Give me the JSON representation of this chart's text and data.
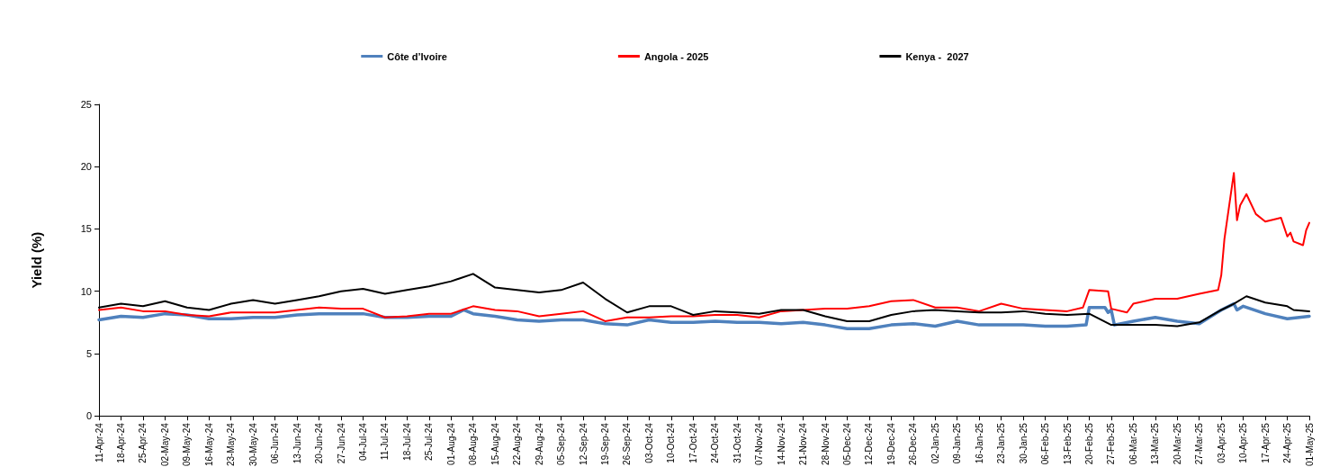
{
  "chart_data": {
    "type": "line",
    "ylabel": "Yield (%)",
    "legend": "top",
    "grid": false,
    "marker": "none",
    "line_style": "solid",
    "xlim": [
      "2024-04-11",
      "2025-05-01"
    ],
    "ylim": [
      0,
      25
    ],
    "yticks": [
      0,
      5,
      10,
      15,
      20,
      25
    ],
    "xticks": [
      {
        "value": "2024-04-11",
        "label": "11-Apr-24"
      },
      {
        "value": "2024-04-18",
        "label": "18-Apr-24"
      },
      {
        "value": "2024-04-25",
        "label": "25-Apr-24"
      },
      {
        "value": "2024-05-02",
        "label": "02-May-24"
      },
      {
        "value": "2024-05-09",
        "label": "09-May-24"
      },
      {
        "value": "2024-05-16",
        "label": "16-May-24"
      },
      {
        "value": "2024-05-23",
        "label": "23-May-24"
      },
      {
        "value": "2024-05-30",
        "label": "30-May-24"
      },
      {
        "value": "2024-06-06",
        "label": "06-Jun-24"
      },
      {
        "value": "2024-06-13",
        "label": "13-Jun-24"
      },
      {
        "value": "2024-06-20",
        "label": "20-Jun-24"
      },
      {
        "value": "2024-06-27",
        "label": "27-Jun-24"
      },
      {
        "value": "2024-07-04",
        "label": "04-Jul-24"
      },
      {
        "value": "2024-07-11",
        "label": "11-Jul-24"
      },
      {
        "value": "2024-07-18",
        "label": "18-Jul-24"
      },
      {
        "value": "2024-07-25",
        "label": "25-Jul-24"
      },
      {
        "value": "2024-08-01",
        "label": "01-Aug-24"
      },
      {
        "value": "2024-08-08",
        "label": "08-Aug-24"
      },
      {
        "value": "2024-08-15",
        "label": "15-Aug-24"
      },
      {
        "value": "2024-08-22",
        "label": "22-Aug-24"
      },
      {
        "value": "2024-08-29",
        "label": "29-Aug-24"
      },
      {
        "value": "2024-09-05",
        "label": "05-Sep-24"
      },
      {
        "value": "2024-09-12",
        "label": "12-Sep-24"
      },
      {
        "value": "2024-09-19",
        "label": "19-Sep-24"
      },
      {
        "value": "2024-09-26",
        "label": "26-Sep-24"
      },
      {
        "value": "2024-10-03",
        "label": "03-Oct-24"
      },
      {
        "value": "2024-10-10",
        "label": "10-Oct-24"
      },
      {
        "value": "2024-10-17",
        "label": "17-Oct-24"
      },
      {
        "value": "2024-10-24",
        "label": "24-Oct-24"
      },
      {
        "value": "2024-10-31",
        "label": "31-Oct-24"
      },
      {
        "value": "2024-11-07",
        "label": "07-Nov-24"
      },
      {
        "value": "2024-11-14",
        "label": "14-Nov-24"
      },
      {
        "value": "2024-11-21",
        "label": "21-Nov-24"
      },
      {
        "value": "2024-11-28",
        "label": "28-Nov-24"
      },
      {
        "value": "2024-12-05",
        "label": "05-Dec-24"
      },
      {
        "value": "2024-12-12",
        "label": "12-Dec-24"
      },
      {
        "value": "2024-12-19",
        "label": "19-Dec-24"
      },
      {
        "value": "2024-12-26",
        "label": "26-Dec-24"
      },
      {
        "value": "2025-01-02",
        "label": "02-Jan-25"
      },
      {
        "value": "2025-01-09",
        "label": "09-Jan-25"
      },
      {
        "value": "2025-01-16",
        "label": "16-Jan-25"
      },
      {
        "value": "2025-01-23",
        "label": "23-Jan-25"
      },
      {
        "value": "2025-01-30",
        "label": "30-Jan-25"
      },
      {
        "value": "2025-02-06",
        "label": "06-Feb-25"
      },
      {
        "value": "2025-02-13",
        "label": "13-Feb-25"
      },
      {
        "value": "2025-02-20",
        "label": "20-Feb-25"
      },
      {
        "value": "2025-02-27",
        "label": "27-Feb-25"
      },
      {
        "value": "2025-03-06",
        "label": "06-Mar-25"
      },
      {
        "value": "2025-03-13",
        "label": "13-Mar-25"
      },
      {
        "value": "2025-03-20",
        "label": "20-Mar-25"
      },
      {
        "value": "2025-03-27",
        "label": "27-Mar-25"
      },
      {
        "value": "2025-04-03",
        "label": "03-Apr-25"
      },
      {
        "value": "2025-04-10",
        "label": "10-Apr-25"
      },
      {
        "value": "2025-04-17",
        "label": "17-Apr-25"
      },
      {
        "value": "2025-04-24",
        "label": "24-Apr-25"
      },
      {
        "value": "2025-05-01",
        "label": "01-May-25"
      }
    ],
    "series": [
      {
        "name": "Côte d’Ivoire",
        "color": "#4f81bd",
        "x": [
          "2024-04-11",
          "2024-04-18",
          "2024-04-25",
          "2024-05-02",
          "2024-05-09",
          "2024-05-16",
          "2024-05-23",
          "2024-05-30",
          "2024-06-06",
          "2024-06-13",
          "2024-06-20",
          "2024-06-27",
          "2024-07-04",
          "2024-07-11",
          "2024-07-18",
          "2024-07-25",
          "2024-08-01",
          "2024-08-05",
          "2024-08-08",
          "2024-08-15",
          "2024-08-22",
          "2024-08-29",
          "2024-09-05",
          "2024-09-12",
          "2024-09-19",
          "2024-09-26",
          "2024-10-03",
          "2024-10-10",
          "2024-10-17",
          "2024-10-24",
          "2024-10-31",
          "2024-11-07",
          "2024-11-14",
          "2024-11-21",
          "2024-11-28",
          "2024-12-05",
          "2024-12-12",
          "2024-12-19",
          "2024-12-26",
          "2025-01-02",
          "2025-01-09",
          "2025-01-16",
          "2025-01-23",
          "2025-01-30",
          "2025-02-06",
          "2025-02-13",
          "2025-02-19",
          "2025-02-20",
          "2025-02-25",
          "2025-02-26",
          "2025-02-27",
          "2025-02-28",
          "2025-03-06",
          "2025-03-13",
          "2025-03-20",
          "2025-03-27",
          "2025-04-03",
          "2025-04-07",
          "2025-04-08",
          "2025-04-10",
          "2025-04-17",
          "2025-04-24",
          "2025-05-01"
        ],
        "values": [
          7.7,
          8.0,
          7.9,
          8.2,
          8.1,
          7.8,
          7.8,
          7.9,
          7.9,
          8.1,
          8.2,
          8.2,
          8.2,
          7.9,
          7.9,
          8.0,
          8.0,
          8.5,
          8.2,
          8.0,
          7.7,
          7.6,
          7.7,
          7.7,
          7.4,
          7.3,
          7.7,
          7.5,
          7.5,
          7.6,
          7.5,
          7.5,
          7.4,
          7.5,
          7.3,
          7.0,
          7.0,
          7.3,
          7.4,
          7.2,
          7.6,
          7.3,
          7.3,
          7.3,
          7.2,
          7.2,
          7.3,
          8.7,
          8.7,
          8.3,
          8.5,
          7.3,
          7.6,
          7.9,
          7.6,
          7.4,
          8.5,
          9.0,
          8.5,
          8.8,
          8.2,
          7.8,
          8.0
        ]
      },
      {
        "name": "Angola - 2025",
        "color": "#ff0000",
        "x": [
          "2024-04-11",
          "2024-04-18",
          "2024-04-25",
          "2024-05-02",
          "2024-05-09",
          "2024-05-16",
          "2024-05-23",
          "2024-05-30",
          "2024-06-06",
          "2024-06-13",
          "2024-06-20",
          "2024-06-27",
          "2024-07-04",
          "2024-07-11",
          "2024-07-18",
          "2024-07-25",
          "2024-08-01",
          "2024-08-08",
          "2024-08-15",
          "2024-08-22",
          "2024-08-29",
          "2024-09-05",
          "2024-09-12",
          "2024-09-19",
          "2024-09-26",
          "2024-10-03",
          "2024-10-10",
          "2024-10-17",
          "2024-10-24",
          "2024-10-31",
          "2024-11-07",
          "2024-11-14",
          "2024-11-21",
          "2024-11-28",
          "2024-12-05",
          "2024-12-12",
          "2024-12-19",
          "2024-12-26",
          "2025-01-02",
          "2025-01-09",
          "2025-01-16",
          "2025-01-23",
          "2025-01-30",
          "2025-02-06",
          "2025-02-13",
          "2025-02-18",
          "2025-02-20",
          "2025-02-26",
          "2025-02-27",
          "2025-03-04",
          "2025-03-06",
          "2025-03-13",
          "2025-03-20",
          "2025-03-27",
          "2025-04-02",
          "2025-04-03",
          "2025-04-04",
          "2025-04-07",
          "2025-04-08",
          "2025-04-09",
          "2025-04-11",
          "2025-04-14",
          "2025-04-17",
          "2025-04-22",
          "2025-04-24",
          "2025-04-25",
          "2025-04-26",
          "2025-04-29",
          "2025-04-30",
          "2025-05-01"
        ],
        "values": [
          8.5,
          8.7,
          8.4,
          8.4,
          8.1,
          8.0,
          8.3,
          8.3,
          8.3,
          8.5,
          8.7,
          8.6,
          8.6,
          7.9,
          8.0,
          8.2,
          8.2,
          8.8,
          8.5,
          8.4,
          8.0,
          8.2,
          8.4,
          7.6,
          7.9,
          7.9,
          8.0,
          8.0,
          8.1,
          8.1,
          7.9,
          8.4,
          8.5,
          8.6,
          8.6,
          8.8,
          9.2,
          9.3,
          8.7,
          8.7,
          8.4,
          9.0,
          8.6,
          8.5,
          8.4,
          8.7,
          10.1,
          10.0,
          8.6,
          8.3,
          9.0,
          9.4,
          9.4,
          9.8,
          10.1,
          11.3,
          14.2,
          19.5,
          15.7,
          16.9,
          17.8,
          16.2,
          15.6,
          15.9,
          14.4,
          14.7,
          14.0,
          13.7,
          14.9,
          15.5
        ]
      },
      {
        "name": "Kenya -  2027",
        "color": "#000000",
        "x": [
          "2024-04-11",
          "2024-04-18",
          "2024-04-25",
          "2024-05-02",
          "2024-05-09",
          "2024-05-16",
          "2024-05-23",
          "2024-05-30",
          "2024-06-06",
          "2024-06-13",
          "2024-06-20",
          "2024-06-27",
          "2024-07-04",
          "2024-07-11",
          "2024-07-18",
          "2024-07-25",
          "2024-08-01",
          "2024-08-08",
          "2024-08-15",
          "2024-08-22",
          "2024-08-29",
          "2024-09-05",
          "2024-09-12",
          "2024-09-19",
          "2024-09-26",
          "2024-10-03",
          "2024-10-10",
          "2024-10-17",
          "2024-10-24",
          "2024-10-31",
          "2024-11-07",
          "2024-11-14",
          "2024-11-21",
          "2024-11-28",
          "2024-12-05",
          "2024-12-12",
          "2024-12-19",
          "2024-12-26",
          "2025-01-02",
          "2025-01-09",
          "2025-01-16",
          "2025-01-23",
          "2025-01-30",
          "2025-02-06",
          "2025-02-13",
          "2025-02-20",
          "2025-02-27",
          "2025-03-06",
          "2025-03-13",
          "2025-03-20",
          "2025-03-27",
          "2025-04-03",
          "2025-04-07",
          "2025-04-11",
          "2025-04-17",
          "2025-04-24",
          "2025-04-26",
          "2025-05-01"
        ],
        "values": [
          8.7,
          9.0,
          8.8,
          9.2,
          8.7,
          8.5,
          9.0,
          9.3,
          9.0,
          9.3,
          9.6,
          10.0,
          10.2,
          9.8,
          10.1,
          10.4,
          10.8,
          11.4,
          10.3,
          10.1,
          9.9,
          10.1,
          10.7,
          9.4,
          8.3,
          8.8,
          8.8,
          8.1,
          8.4,
          8.3,
          8.2,
          8.5,
          8.5,
          8.0,
          7.6,
          7.6,
          8.1,
          8.4,
          8.5,
          8.4,
          8.3,
          8.3,
          8.4,
          8.2,
          8.1,
          8.2,
          7.3,
          7.3,
          7.3,
          7.2,
          7.5,
          8.5,
          9.0,
          9.6,
          9.1,
          8.8,
          8.5,
          8.4
        ]
      }
    ]
  }
}
